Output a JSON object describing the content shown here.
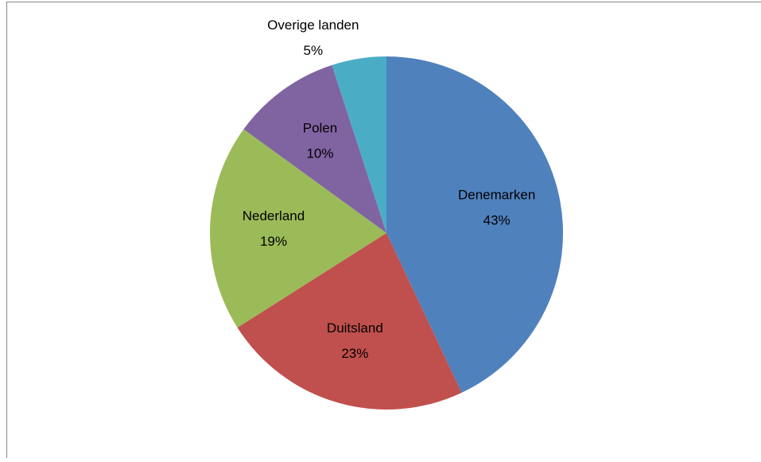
{
  "chart_data": {
    "type": "pie",
    "categories": [
      "Denemarken",
      "Duitsland",
      "Nederland",
      "Polen",
      "Overige landen"
    ],
    "values": [
      43,
      23,
      19,
      10,
      5
    ],
    "value_labels": [
      "43%",
      "23%",
      "19%",
      "10%",
      "5%"
    ],
    "colors": [
      "#4f81bd",
      "#c0504d",
      "#9bbb59",
      "#8064a2",
      "#4bacc6"
    ]
  }
}
